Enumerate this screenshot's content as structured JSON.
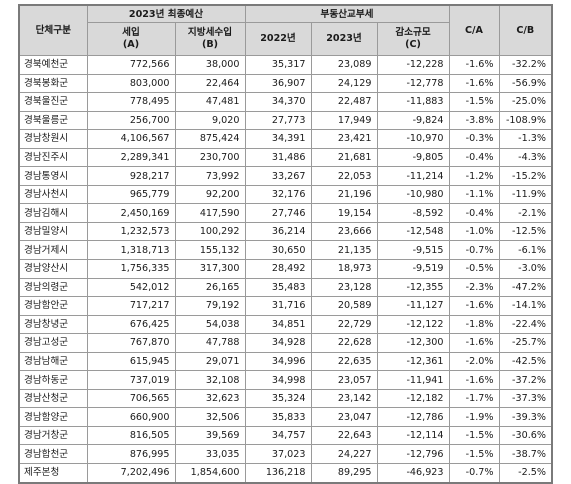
{
  "headers": {
    "region": "단체구분",
    "budget_group": "2023년 최종예산",
    "revenue": "세입\n(A)",
    "local_tax": "지방세수입\n(B)",
    "property_tax_group": "부동산교부세",
    "y2022": "2022년",
    "y2023": "2023년",
    "decrease": "감소규모\n(C)",
    "ca": "C/A",
    "cb": "C/B"
  },
  "rows": [
    {
      "name": "경북예천군",
      "revenue": "772,566",
      "local_tax": "38,000",
      "y2022": "35,317",
      "y2023": "23,089",
      "decrease": "-12,228",
      "ca": "-1.6%",
      "cb": "-32.2%"
    },
    {
      "name": "경북봉화군",
      "revenue": "803,000",
      "local_tax": "22,464",
      "y2022": "36,907",
      "y2023": "24,129",
      "decrease": "-12,778",
      "ca": "-1.6%",
      "cb": "-56.9%"
    },
    {
      "name": "경북울진군",
      "revenue": "778,495",
      "local_tax": "47,481",
      "y2022": "34,370",
      "y2023": "22,487",
      "decrease": "-11,883",
      "ca": "-1.5%",
      "cb": "-25.0%"
    },
    {
      "name": "경북울릉군",
      "revenue": "256,700",
      "local_tax": "9,020",
      "y2022": "27,773",
      "y2023": "17,949",
      "decrease": "-9,824",
      "ca": "-3.8%",
      "cb": "-108.9%"
    },
    {
      "name": "경남창원시",
      "revenue": "4,106,567",
      "local_tax": "875,424",
      "y2022": "34,391",
      "y2023": "23,421",
      "decrease": "-10,970",
      "ca": "-0.3%",
      "cb": "-1.3%"
    },
    {
      "name": "경남진주시",
      "revenue": "2,289,341",
      "local_tax": "230,700",
      "y2022": "31,486",
      "y2023": "21,681",
      "decrease": "-9,805",
      "ca": "-0.4%",
      "cb": "-4.3%"
    },
    {
      "name": "경남통영시",
      "revenue": "928,217",
      "local_tax": "73,992",
      "y2022": "33,267",
      "y2023": "22,053",
      "decrease": "-11,214",
      "ca": "-1.2%",
      "cb": "-15.2%"
    },
    {
      "name": "경남사천시",
      "revenue": "965,779",
      "local_tax": "92,200",
      "y2022": "32,176",
      "y2023": "21,196",
      "decrease": "-10,980",
      "ca": "-1.1%",
      "cb": "-11.9%"
    },
    {
      "name": "경남김해시",
      "revenue": "2,450,169",
      "local_tax": "417,590",
      "y2022": "27,746",
      "y2023": "19,154",
      "decrease": "-8,592",
      "ca": "-0.4%",
      "cb": "-2.1%"
    },
    {
      "name": "경남밀양시",
      "revenue": "1,232,573",
      "local_tax": "100,292",
      "y2022": "36,214",
      "y2023": "23,666",
      "decrease": "-12,548",
      "ca": "-1.0%",
      "cb": "-12.5%"
    },
    {
      "name": "경남거제시",
      "revenue": "1,318,713",
      "local_tax": "155,132",
      "y2022": "30,650",
      "y2023": "21,135",
      "decrease": "-9,515",
      "ca": "-0.7%",
      "cb": "-6.1%"
    },
    {
      "name": "경남양산시",
      "revenue": "1,756,335",
      "local_tax": "317,300",
      "y2022": "28,492",
      "y2023": "18,973",
      "decrease": "-9,519",
      "ca": "-0.5%",
      "cb": "-3.0%"
    },
    {
      "name": "경남의령군",
      "revenue": "542,012",
      "local_tax": "26,165",
      "y2022": "35,483",
      "y2023": "23,128",
      "decrease": "-12,355",
      "ca": "-2.3%",
      "cb": "-47.2%"
    },
    {
      "name": "경남함안군",
      "revenue": "717,217",
      "local_tax": "79,192",
      "y2022": "31,716",
      "y2023": "20,589",
      "decrease": "-11,127",
      "ca": "-1.6%",
      "cb": "-14.1%"
    },
    {
      "name": "경남창녕군",
      "revenue": "676,425",
      "local_tax": "54,038",
      "y2022": "34,851",
      "y2023": "22,729",
      "decrease": "-12,122",
      "ca": "-1.8%",
      "cb": "-22.4%"
    },
    {
      "name": "경남고성군",
      "revenue": "767,870",
      "local_tax": "47,788",
      "y2022": "34,928",
      "y2023": "22,628",
      "decrease": "-12,300",
      "ca": "-1.6%",
      "cb": "-25.7%"
    },
    {
      "name": "경남남해군",
      "revenue": "615,945",
      "local_tax": "29,071",
      "y2022": "34,996",
      "y2023": "22,635",
      "decrease": "-12,361",
      "ca": "-2.0%",
      "cb": "-42.5%"
    },
    {
      "name": "경남하동군",
      "revenue": "737,019",
      "local_tax": "32,108",
      "y2022": "34,998",
      "y2023": "23,057",
      "decrease": "-11,941",
      "ca": "-1.6%",
      "cb": "-37.2%"
    },
    {
      "name": "경남산청군",
      "revenue": "706,565",
      "local_tax": "32,623",
      "y2022": "35,324",
      "y2023": "23,142",
      "decrease": "-12,182",
      "ca": "-1.7%",
      "cb": "-37.3%"
    },
    {
      "name": "경남함양군",
      "revenue": "660,900",
      "local_tax": "32,506",
      "y2022": "35,833",
      "y2023": "23,047",
      "decrease": "-12,786",
      "ca": "-1.9%",
      "cb": "-39.3%"
    },
    {
      "name": "경남거창군",
      "revenue": "816,505",
      "local_tax": "39,569",
      "y2022": "34,757",
      "y2023": "22,643",
      "decrease": "-12,114",
      "ca": "-1.5%",
      "cb": "-30.6%"
    },
    {
      "name": "경남합천군",
      "revenue": "876,995",
      "local_tax": "33,035",
      "y2022": "37,023",
      "y2023": "24,227",
      "decrease": "-12,796",
      "ca": "-1.5%",
      "cb": "-38.7%"
    },
    {
      "name": "제주본청",
      "revenue": "7,202,496",
      "local_tax": "1,854,600",
      "y2022": "136,218",
      "y2023": "89,295",
      "decrease": "-46,923",
      "ca": "-0.7%",
      "cb": "-2.5%"
    }
  ]
}
